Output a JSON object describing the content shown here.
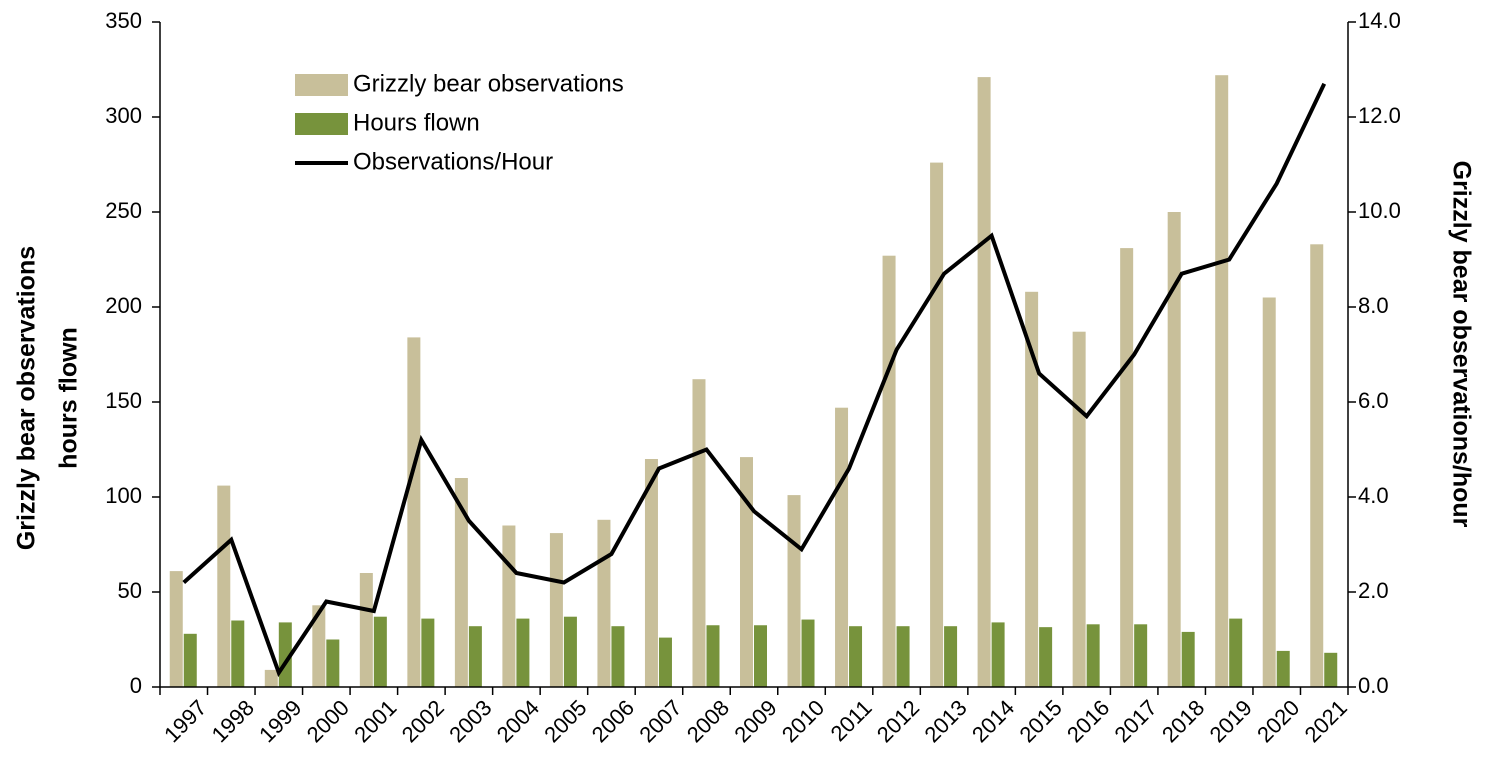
{
  "chart_data": {
    "type": "bar",
    "ylabel": [
      "Grizzly bear observations",
      "hours flown"
    ],
    "y2label": "Grizzly bear observations/hour",
    "categories": [
      "1997",
      "1998",
      "1999",
      "2000",
      "2001",
      "2002",
      "2003",
      "2004",
      "2005",
      "2006",
      "2007",
      "2008",
      "2009",
      "2010",
      "2011",
      "2012",
      "2013",
      "2014",
      "2015",
      "2016",
      "2017",
      "2018",
      "2019",
      "2020",
      "2021"
    ],
    "series": [
      {
        "name": "Grizzly bear observations",
        "type": "bar",
        "color": "#c8bf9a",
        "values": [
          61,
          106,
          9,
          43,
          60,
          184,
          110,
          85,
          81,
          88,
          120,
          162,
          121,
          101,
          147,
          227,
          276,
          321,
          208,
          187,
          231,
          250,
          322,
          205,
          233
        ]
      },
      {
        "name": "Hours flown",
        "type": "bar",
        "color": "#77933c",
        "values": [
          28,
          35,
          34,
          25,
          37,
          36,
          32,
          36,
          37,
          32,
          26,
          32.5,
          32.5,
          35.5,
          32,
          32,
          32,
          34,
          31.5,
          33,
          33,
          29,
          36,
          19,
          18
        ]
      },
      {
        "name": "Observations/Hour",
        "type": "line",
        "axis": "y2",
        "color": "#000000",
        "values": [
          2.2,
          3.1,
          0.3,
          1.8,
          1.6,
          5.2,
          3.5,
          2.4,
          2.2,
          2.8,
          4.6,
          5.0,
          3.7,
          2.9,
          4.6,
          7.1,
          8.7,
          9.5,
          6.6,
          5.7,
          7.0,
          8.7,
          9.0,
          10.6,
          12.7
        ]
      }
    ],
    "ylim": [
      0,
      350
    ],
    "yticks": [
      0,
      50,
      100,
      150,
      200,
      250,
      300,
      350
    ],
    "y2lim": [
      0,
      14
    ],
    "y2ticks": [
      {
        "value": 0,
        "label": "0.0"
      },
      {
        "value": 2,
        "label": "2.0"
      },
      {
        "value": 4,
        "label": "4.0"
      },
      {
        "value": 6,
        "label": "6.0"
      },
      {
        "value": 8,
        "label": "8.0"
      },
      {
        "value": 10,
        "label": "10.0"
      },
      {
        "value": 12,
        "label": "12.0"
      },
      {
        "value": 14,
        "label": "14.0"
      }
    ],
    "grid": false,
    "legend": "upper left"
  }
}
